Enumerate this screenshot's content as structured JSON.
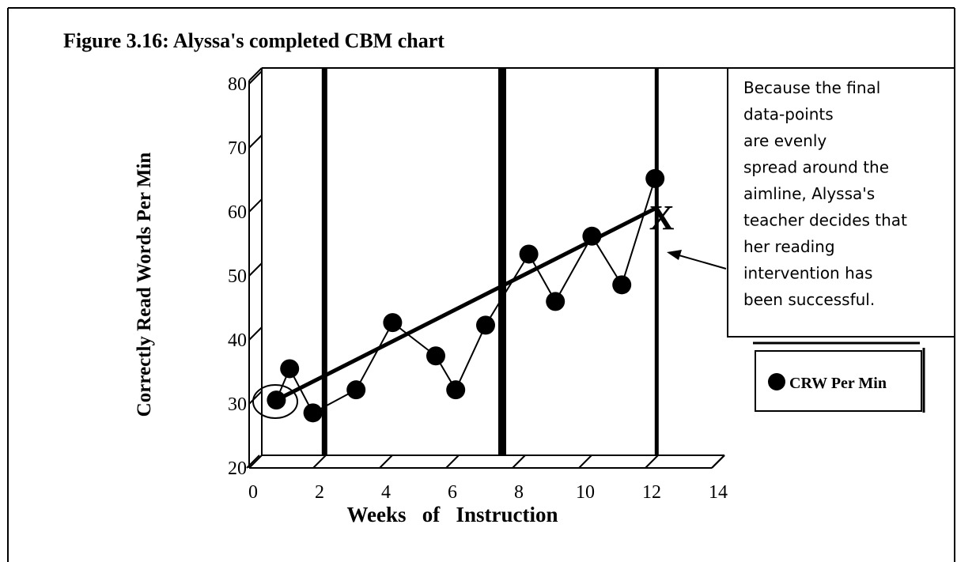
{
  "chart_data": {
    "type": "line",
    "title": "Figure 3.16:  Alyssa's completed CBM chart",
    "x_label": "Weeks   of   Instruction",
    "y_label": "Correctly Read Words Per Min",
    "series": [
      {
        "name": "CRW Per Min",
        "color": "#000000",
        "x": [
          0.7,
          1.1,
          1.8,
          3.1,
          4.2,
          5.5,
          6.1,
          7.0,
          8.3,
          9.1,
          10.2,
          11.1,
          12.1
        ],
        "values": [
          30.6,
          35.5,
          28.6,
          32.2,
          42.7,
          37.5,
          32.2,
          42.3,
          53.4,
          46.0,
          56.2,
          48.6,
          65.2
        ]
      }
    ],
    "aimline": {
      "x": [
        0.7,
        12.1
      ],
      "values": [
        30.6,
        60.5
      ]
    },
    "phase_lines": [
      2.15,
      7.5,
      12.15
    ],
    "goal_marker": {
      "label": "X",
      "x": 12.3,
      "y": 59.5
    },
    "annotation": [
      "Because the final",
      "data-points",
      "are evenly",
      "spread around the",
      "aimline, Alyssa's",
      "teacher decides that",
      "her reading",
      "intervention has",
      "been successful."
    ],
    "xlim": [
      0,
      14
    ],
    "xticks": [
      0,
      2,
      4,
      6,
      8,
      10,
      12,
      14
    ],
    "ylim": [
      20,
      80
    ],
    "yticks": [
      20,
      30,
      40,
      50,
      60,
      70,
      80
    ],
    "grid": false,
    "legend": "right"
  }
}
